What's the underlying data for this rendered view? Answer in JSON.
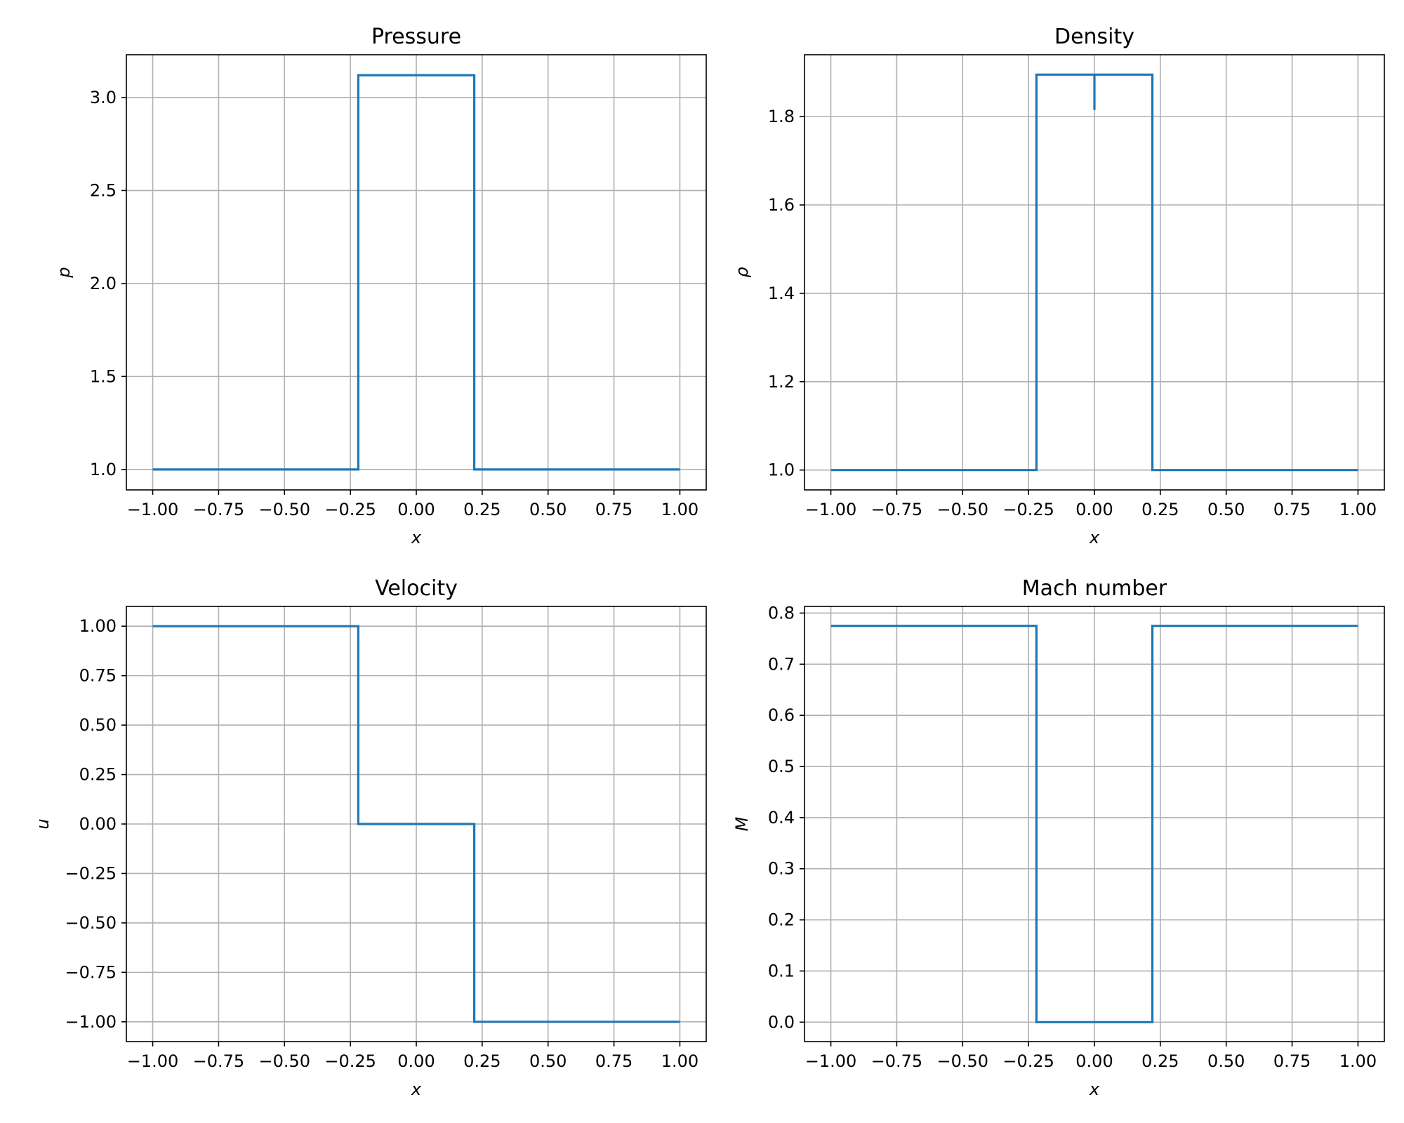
{
  "chart_data": [
    {
      "type": "line",
      "title": "Pressure",
      "xlabel": "x",
      "ylabel": "p",
      "xlim": [
        -1.1,
        1.1
      ],
      "ylim": [
        0.89,
        3.23
      ],
      "xticks": [
        -1.0,
        -0.75,
        -0.5,
        -0.25,
        0.0,
        0.25,
        0.5,
        0.75,
        1.0
      ],
      "xtick_labels": [
        "−1.00",
        "−0.75",
        "−0.50",
        "−0.25",
        "0.00",
        "0.25",
        "0.50",
        "0.75",
        "1.00"
      ],
      "yticks": [
        1.0,
        1.5,
        2.0,
        2.5,
        3.0
      ],
      "ytick_labels": [
        "1.0",
        "1.5",
        "2.0",
        "2.5",
        "3.0"
      ],
      "grid": true,
      "color": "#1f77b4",
      "series": [
        {
          "x": [
            -1.0,
            -0.22,
            -0.22,
            0.22,
            0.22,
            1.0
          ],
          "y": [
            1.0,
            1.0,
            3.12,
            3.12,
            1.0,
            1.0
          ]
        }
      ]
    },
    {
      "type": "line",
      "title": "Density",
      "xlabel": "x",
      "ylabel": "ρ",
      "xlim": [
        -1.1,
        1.1
      ],
      "ylim": [
        0.955,
        1.94
      ],
      "xticks": [
        -1.0,
        -0.75,
        -0.5,
        -0.25,
        0.0,
        0.25,
        0.5,
        0.75,
        1.0
      ],
      "xtick_labels": [
        "−1.00",
        "−0.75",
        "−0.50",
        "−0.25",
        "0.00",
        "0.25",
        "0.50",
        "0.75",
        "1.00"
      ],
      "yticks": [
        1.0,
        1.2,
        1.4,
        1.6,
        1.8
      ],
      "ytick_labels": [
        "1.0",
        "1.2",
        "1.4",
        "1.6",
        "1.8"
      ],
      "grid": true,
      "color": "#1f77b4",
      "series": [
        {
          "x": [
            -1.0,
            -0.22,
            -0.22,
            0.0,
            0.0,
            0.0,
            0.22,
            0.22,
            1.0
          ],
          "y": [
            1.0,
            1.0,
            1.895,
            1.895,
            1.815,
            1.895,
            1.895,
            1.0,
            1.0
          ]
        }
      ]
    },
    {
      "type": "line",
      "title": "Velocity",
      "xlabel": "x",
      "ylabel": "u",
      "xlim": [
        -1.1,
        1.1
      ],
      "ylim": [
        -1.1,
        1.1
      ],
      "xticks": [
        -1.0,
        -0.75,
        -0.5,
        -0.25,
        0.0,
        0.25,
        0.5,
        0.75,
        1.0
      ],
      "xtick_labels": [
        "−1.00",
        "−0.75",
        "−0.50",
        "−0.25",
        "0.00",
        "0.25",
        "0.50",
        "0.75",
        "1.00"
      ],
      "yticks": [
        -1.0,
        -0.75,
        -0.5,
        -0.25,
        0.0,
        0.25,
        0.5,
        0.75,
        1.0
      ],
      "ytick_labels": [
        "−1.00",
        "−0.75",
        "−0.50",
        "−0.25",
        "0.00",
        "0.25",
        "0.50",
        "0.75",
        "1.00"
      ],
      "grid": true,
      "color": "#1f77b4",
      "series": [
        {
          "x": [
            -1.0,
            -0.22,
            -0.22,
            0.22,
            0.22,
            1.0
          ],
          "y": [
            1.0,
            1.0,
            0.0,
            0.0,
            -1.0,
            -1.0
          ]
        }
      ]
    },
    {
      "type": "line",
      "title": "Mach number",
      "xlabel": "x",
      "ylabel": "M",
      "xlim": [
        -1.1,
        1.1
      ],
      "ylim": [
        -0.038,
        0.813
      ],
      "xticks": [
        -1.0,
        -0.75,
        -0.5,
        -0.25,
        0.0,
        0.25,
        0.5,
        0.75,
        1.0
      ],
      "xtick_labels": [
        "−1.00",
        "−0.75",
        "−0.50",
        "−0.25",
        "0.00",
        "0.25",
        "0.50",
        "0.75",
        "1.00"
      ],
      "yticks": [
        0.0,
        0.1,
        0.2,
        0.3,
        0.4,
        0.5,
        0.6,
        0.7,
        0.8
      ],
      "ytick_labels": [
        "0.0",
        "0.1",
        "0.2",
        "0.3",
        "0.4",
        "0.5",
        "0.6",
        "0.7",
        "0.8"
      ],
      "grid": true,
      "color": "#1f77b4",
      "series": [
        {
          "x": [
            -1.0,
            -0.22,
            -0.22,
            0.22,
            0.22,
            1.0
          ],
          "y": [
            0.775,
            0.775,
            0.0,
            0.0,
            0.775,
            0.775
          ]
        }
      ]
    }
  ]
}
